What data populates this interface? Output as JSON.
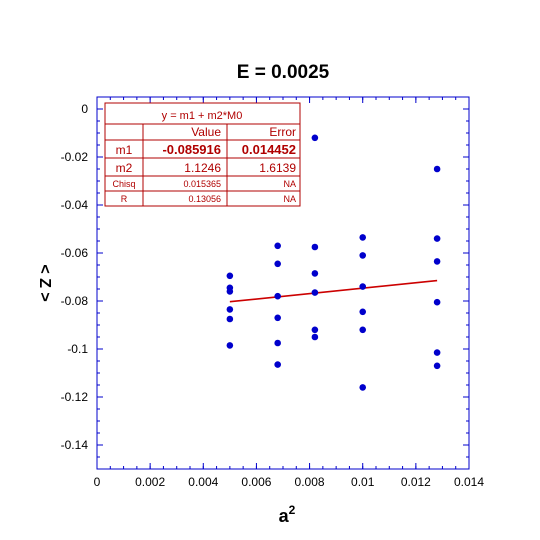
{
  "chart_data": {
    "type": "scatter",
    "title": "E = 0.0025",
    "xlabel_base": "a",
    "xlabel_sup": "2",
    "ylabel": "< Z >",
    "xlim": [
      0,
      0.014
    ],
    "ylim": [
      -0.15,
      0.005
    ],
    "xticks": [
      0,
      0.002,
      0.004,
      0.006,
      0.008,
      0.01,
      0.012,
      0.014
    ],
    "xtick_labels": [
      "0",
      "0.002",
      "0.004",
      "0.006",
      "0.008",
      "0.01",
      "0.012",
      "0.014"
    ],
    "yticks": [
      0,
      -0.02,
      -0.04,
      -0.06,
      -0.08,
      -0.1,
      -0.12,
      -0.14
    ],
    "ytick_labels": [
      "0",
      "-0.02",
      "-0.04",
      "-0.06",
      "-0.08",
      "-0.1",
      "-0.12",
      "-0.14"
    ],
    "grid": false,
    "colors": {
      "points": "#0000cc",
      "fit": "#cc0000",
      "axes": "#0000cc",
      "box": "#b00000"
    },
    "points": [
      {
        "x": 0.005,
        "y": -0.0695
      },
      {
        "x": 0.005,
        "y": -0.0745
      },
      {
        "x": 0.005,
        "y": -0.076
      },
      {
        "x": 0.005,
        "y": -0.0835
      },
      {
        "x": 0.005,
        "y": -0.0875
      },
      {
        "x": 0.005,
        "y": -0.0985
      },
      {
        "x": 0.0068,
        "y": -0.057
      },
      {
        "x": 0.0068,
        "y": -0.0645
      },
      {
        "x": 0.0068,
        "y": -0.078
      },
      {
        "x": 0.0068,
        "y": -0.087
      },
      {
        "x": 0.0068,
        "y": -0.0975
      },
      {
        "x": 0.0068,
        "y": -0.1065
      },
      {
        "x": 0.0082,
        "y": -0.012
      },
      {
        "x": 0.0082,
        "y": -0.0575
      },
      {
        "x": 0.0082,
        "y": -0.0685
      },
      {
        "x": 0.0082,
        "y": -0.0765
      },
      {
        "x": 0.0082,
        "y": -0.092
      },
      {
        "x": 0.0082,
        "y": -0.095
      },
      {
        "x": 0.01,
        "y": -0.0535
      },
      {
        "x": 0.01,
        "y": -0.061
      },
      {
        "x": 0.01,
        "y": -0.074
      },
      {
        "x": 0.01,
        "y": -0.0845
      },
      {
        "x": 0.01,
        "y": -0.092
      },
      {
        "x": 0.01,
        "y": -0.116
      },
      {
        "x": 0.0128,
        "y": -0.025
      },
      {
        "x": 0.0128,
        "y": -0.054
      },
      {
        "x": 0.0128,
        "y": -0.0635
      },
      {
        "x": 0.0128,
        "y": -0.0805
      },
      {
        "x": 0.0128,
        "y": -0.1015
      },
      {
        "x": 0.0128,
        "y": -0.107
      }
    ],
    "fit_line": {
      "x": [
        0.005,
        0.0128
      ],
      "y": [
        -0.0803,
        -0.0715
      ]
    },
    "fit_box": {
      "equation": "y = m1 + m2*M0",
      "col_value": "Value",
      "col_error": "Error",
      "rows": [
        {
          "name": "m1",
          "value": "-0.085916",
          "error": "0.014452",
          "bold": true
        },
        {
          "name": "m2",
          "value": "1.1246",
          "error": "1.6139",
          "bold": false
        },
        {
          "name": "Chisq",
          "value": "0.015365",
          "error": "NA",
          "bold": false
        },
        {
          "name": "R",
          "value": "0.13056",
          "error": "NA",
          "bold": false
        }
      ]
    }
  }
}
